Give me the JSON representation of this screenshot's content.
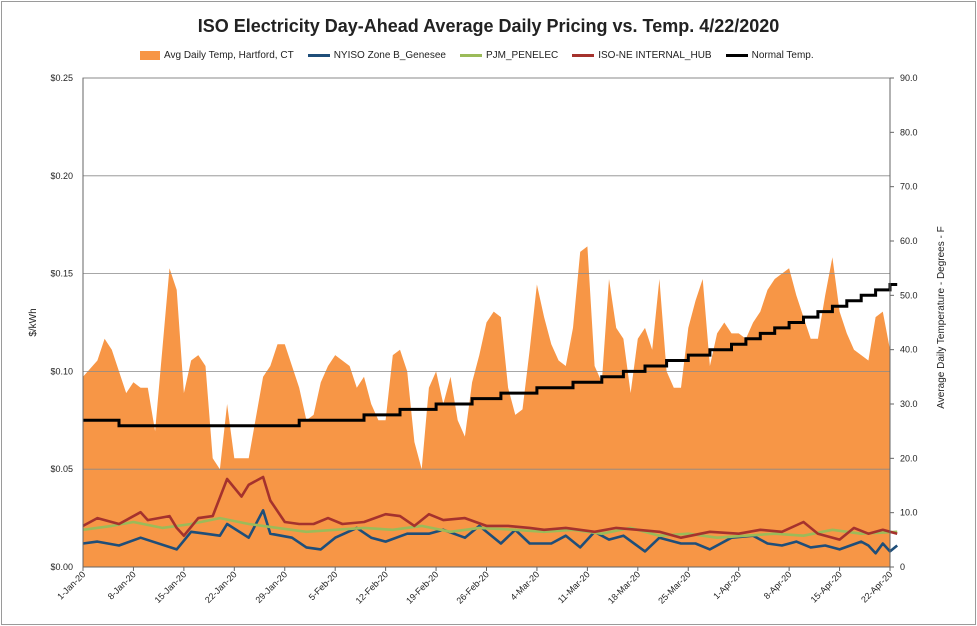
{
  "chart_data": {
    "type": "line",
    "title": "ISO Electricity Day-Ahead Average Daily Pricing vs. Temp. 4/22/2020",
    "ylabel": "$/kWh",
    "y2label": "Average Daily Temperature - Degrees - F",
    "ylim": [
      0,
      0.25
    ],
    "y2lim": [
      0,
      90
    ],
    "yticks": [
      "$0.00",
      "$0.05",
      "$0.10",
      "$0.15",
      "$0.20",
      "$0.25"
    ],
    "y2ticks": [
      "0",
      "10.0",
      "20.0",
      "30.0",
      "40.0",
      "50.0",
      "60.0",
      "70.0",
      "80.0",
      "90.0"
    ],
    "x_start": "2020-01-01",
    "x_end": "2020-04-22",
    "xticks": [
      "1-Jan-20",
      "8-Jan-20",
      "15-Jan-20",
      "22-Jan-20",
      "29-Jan-20",
      "5-Feb-20",
      "12-Feb-20",
      "19-Feb-20",
      "26-Feb-20",
      "4-Mar-20",
      "11-Mar-20",
      "18-Mar-20",
      "25-Mar-20",
      "1-Apr-20",
      "8-Apr-20",
      "15-Apr-20",
      "22-Apr-20"
    ],
    "grid": true,
    "legend_position": "top",
    "series": [
      {
        "name": "Avg Daily Temp, Hartford, CT",
        "axis": "right",
        "kind": "area",
        "color": "#f79646",
        "keys": [
          [
            "2020-01-01",
            35
          ],
          [
            "2020-01-03",
            38
          ],
          [
            "2020-01-04",
            42
          ],
          [
            "2020-01-05",
            40
          ],
          [
            "2020-01-07",
            32
          ],
          [
            "2020-01-08",
            34
          ],
          [
            "2020-01-09",
            33
          ],
          [
            "2020-01-10",
            33
          ],
          [
            "2020-01-11",
            25
          ],
          [
            "2020-01-12",
            40
          ],
          [
            "2020-01-13",
            55
          ],
          [
            "2020-01-14",
            51
          ],
          [
            "2020-01-15",
            32
          ],
          [
            "2020-01-16",
            38
          ],
          [
            "2020-01-17",
            39
          ],
          [
            "2020-01-18",
            37
          ],
          [
            "2020-01-19",
            20
          ],
          [
            "2020-01-20",
            18
          ],
          [
            "2020-01-21",
            30
          ],
          [
            "2020-01-22",
            20
          ],
          [
            "2020-01-23",
            20
          ],
          [
            "2020-01-24",
            20
          ],
          [
            "2020-01-26",
            35
          ],
          [
            "2020-01-27",
            37
          ],
          [
            "2020-01-28",
            41
          ],
          [
            "2020-01-29",
            41
          ],
          [
            "2020-01-30",
            37
          ],
          [
            "2020-01-31",
            33
          ],
          [
            "2020-02-01",
            27
          ],
          [
            "2020-02-02",
            28
          ],
          [
            "2020-02-03",
            34
          ],
          [
            "2020-02-04",
            37
          ],
          [
            "2020-02-05",
            39
          ],
          [
            "2020-02-07",
            37
          ],
          [
            "2020-02-08",
            33
          ],
          [
            "2020-02-09",
            35
          ],
          [
            "2020-02-10",
            30
          ],
          [
            "2020-02-11",
            27
          ],
          [
            "2020-02-12",
            27
          ],
          [
            "2020-02-13",
            39
          ],
          [
            "2020-02-14",
            40
          ],
          [
            "2020-02-15",
            36
          ],
          [
            "2020-02-16",
            23
          ],
          [
            "2020-02-17",
            18
          ],
          [
            "2020-02-18",
            33
          ],
          [
            "2020-02-19",
            36
          ],
          [
            "2020-02-20",
            30
          ],
          [
            "2020-02-21",
            35
          ],
          [
            "2020-02-22",
            27
          ],
          [
            "2020-02-23",
            24
          ],
          [
            "2020-02-24",
            34
          ],
          [
            "2020-02-25",
            39
          ],
          [
            "2020-02-26",
            45
          ],
          [
            "2020-02-27",
            47
          ],
          [
            "2020-02-28",
            46
          ],
          [
            "2020-02-29",
            33
          ],
          [
            "2020-03-01",
            28
          ],
          [
            "2020-03-02",
            29
          ],
          [
            "2020-03-03",
            40
          ],
          [
            "2020-03-04",
            52
          ],
          [
            "2020-03-05",
            46
          ],
          [
            "2020-03-06",
            41
          ],
          [
            "2020-03-07",
            38
          ],
          [
            "2020-03-08",
            37
          ],
          [
            "2020-03-09",
            44
          ],
          [
            "2020-03-10",
            58
          ],
          [
            "2020-03-11",
            59
          ],
          [
            "2020-03-12",
            37
          ],
          [
            "2020-03-13",
            34
          ],
          [
            "2020-03-14",
            53
          ],
          [
            "2020-03-15",
            44
          ],
          [
            "2020-03-16",
            42
          ],
          [
            "2020-03-17",
            32
          ],
          [
            "2020-03-18",
            42
          ],
          [
            "2020-03-19",
            44
          ],
          [
            "2020-03-20",
            40
          ],
          [
            "2020-03-21",
            53
          ],
          [
            "2020-03-22",
            36
          ],
          [
            "2020-03-23",
            33
          ],
          [
            "2020-03-24",
            33
          ],
          [
            "2020-03-25",
            44
          ],
          [
            "2020-03-26",
            49
          ],
          [
            "2020-03-27",
            53
          ],
          [
            "2020-03-28",
            37
          ],
          [
            "2020-03-29",
            43
          ],
          [
            "2020-03-30",
            45
          ],
          [
            "2020-03-31",
            43
          ],
          [
            "2020-04-01",
            43
          ],
          [
            "2020-04-02",
            42
          ],
          [
            "2020-04-03",
            45
          ],
          [
            "2020-04-04",
            47
          ],
          [
            "2020-04-05",
            51
          ],
          [
            "2020-04-06",
            53
          ],
          [
            "2020-04-07",
            54
          ],
          [
            "2020-04-08",
            55
          ],
          [
            "2020-04-09",
            50
          ],
          [
            "2020-04-10",
            46
          ],
          [
            "2020-04-11",
            42
          ],
          [
            "2020-04-12",
            42
          ],
          [
            "2020-04-13",
            50
          ],
          [
            "2020-04-14",
            57
          ],
          [
            "2020-04-15",
            47
          ],
          [
            "2020-04-16",
            43
          ],
          [
            "2020-04-17",
            40
          ],
          [
            "2020-04-18",
            39
          ],
          [
            "2020-04-19",
            38
          ],
          [
            "2020-04-20",
            46
          ],
          [
            "2020-04-21",
            47
          ],
          [
            "2020-04-22",
            40
          ]
        ]
      },
      {
        "name": "NYISO Zone B_Genesee",
        "axis": "left",
        "kind": "line",
        "color": "#1f4e79",
        "keys": [
          [
            "2020-01-01",
            0.012
          ],
          [
            "2020-01-03",
            0.013
          ],
          [
            "2020-01-06",
            0.011
          ],
          [
            "2020-01-09",
            0.015
          ],
          [
            "2020-01-14",
            0.009
          ],
          [
            "2020-01-16",
            0.018
          ],
          [
            "2020-01-18",
            0.017
          ],
          [
            "2020-01-20",
            0.016
          ],
          [
            "2020-01-21",
            0.022
          ],
          [
            "2020-01-24",
            0.015
          ],
          [
            "2020-01-26",
            0.029
          ],
          [
            "2020-01-27",
            0.017
          ],
          [
            "2020-01-30",
            0.015
          ],
          [
            "2020-02-01",
            0.01
          ],
          [
            "2020-02-03",
            0.009
          ],
          [
            "2020-02-05",
            0.015
          ],
          [
            "2020-02-08",
            0.02
          ],
          [
            "2020-02-10",
            0.015
          ],
          [
            "2020-02-12",
            0.013
          ],
          [
            "2020-02-15",
            0.017
          ],
          [
            "2020-02-18",
            0.017
          ],
          [
            "2020-02-20",
            0.019
          ],
          [
            "2020-02-23",
            0.015
          ],
          [
            "2020-02-25",
            0.021
          ],
          [
            "2020-02-28",
            0.012
          ],
          [
            "2020-03-01",
            0.019
          ],
          [
            "2020-03-03",
            0.012
          ],
          [
            "2020-03-06",
            0.012
          ],
          [
            "2020-03-08",
            0.016
          ],
          [
            "2020-03-10",
            0.01
          ],
          [
            "2020-03-12",
            0.018
          ],
          [
            "2020-03-14",
            0.014
          ],
          [
            "2020-03-16",
            0.016
          ],
          [
            "2020-03-19",
            0.008
          ],
          [
            "2020-03-21",
            0.015
          ],
          [
            "2020-03-24",
            0.012
          ],
          [
            "2020-03-26",
            0.012
          ],
          [
            "2020-03-28",
            0.009
          ],
          [
            "2020-03-31",
            0.015
          ],
          [
            "2020-04-03",
            0.016
          ],
          [
            "2020-04-05",
            0.012
          ],
          [
            "2020-04-07",
            0.011
          ],
          [
            "2020-04-09",
            0.013
          ],
          [
            "2020-04-11",
            0.01
          ],
          [
            "2020-04-13",
            0.011
          ],
          [
            "2020-04-15",
            0.009
          ],
          [
            "2020-04-18",
            0.013
          ],
          [
            "2020-04-19",
            0.011
          ],
          [
            "2020-04-20",
            0.007
          ],
          [
            "2020-04-21",
            0.012
          ],
          [
            "2020-04-22",
            0.008
          ],
          [
            "2020-04-23",
            0.011
          ]
        ]
      },
      {
        "name": "PJM_PENELEC",
        "axis": "left",
        "kind": "line",
        "color": "#9bbb59",
        "keys": [
          [
            "2020-01-01",
            0.019
          ],
          [
            "2020-01-05",
            0.021
          ],
          [
            "2020-01-08",
            0.023
          ],
          [
            "2020-01-12",
            0.02
          ],
          [
            "2020-01-16",
            0.022
          ],
          [
            "2020-01-20",
            0.025
          ],
          [
            "2020-01-24",
            0.022
          ],
          [
            "2020-01-28",
            0.02
          ],
          [
            "2020-02-01",
            0.018
          ],
          [
            "2020-02-05",
            0.019
          ],
          [
            "2020-02-09",
            0.02
          ],
          [
            "2020-02-13",
            0.019
          ],
          [
            "2020-02-17",
            0.021
          ],
          [
            "2020-02-21",
            0.018
          ],
          [
            "2020-02-25",
            0.02
          ],
          [
            "2020-03-01",
            0.019
          ],
          [
            "2020-03-05",
            0.018
          ],
          [
            "2020-03-09",
            0.019
          ],
          [
            "2020-03-13",
            0.017
          ],
          [
            "2020-03-17",
            0.02
          ],
          [
            "2020-03-21",
            0.016
          ],
          [
            "2020-03-25",
            0.017
          ],
          [
            "2020-03-29",
            0.015
          ],
          [
            "2020-04-02",
            0.016
          ],
          [
            "2020-04-06",
            0.017
          ],
          [
            "2020-04-10",
            0.016
          ],
          [
            "2020-04-14",
            0.019
          ],
          [
            "2020-04-18",
            0.017
          ],
          [
            "2020-04-23",
            0.018
          ]
        ]
      },
      {
        "name": "ISO-NE INTERNAL_HUB",
        "axis": "left",
        "kind": "line",
        "color": "#a5322d",
        "keys": [
          [
            "2020-01-01",
            0.021
          ],
          [
            "2020-01-03",
            0.025
          ],
          [
            "2020-01-06",
            0.022
          ],
          [
            "2020-01-09",
            0.028
          ],
          [
            "2020-01-10",
            0.024
          ],
          [
            "2020-01-13",
            0.026
          ],
          [
            "2020-01-14",
            0.02
          ],
          [
            "2020-01-15",
            0.016
          ],
          [
            "2020-01-17",
            0.025
          ],
          [
            "2020-01-19",
            0.026
          ],
          [
            "2020-01-21",
            0.045
          ],
          [
            "2020-01-23",
            0.036
          ],
          [
            "2020-01-24",
            0.042
          ],
          [
            "2020-01-26",
            0.046
          ],
          [
            "2020-01-27",
            0.034
          ],
          [
            "2020-01-29",
            0.023
          ],
          [
            "2020-01-31",
            0.022
          ],
          [
            "2020-02-02",
            0.022
          ],
          [
            "2020-02-04",
            0.025
          ],
          [
            "2020-02-06",
            0.022
          ],
          [
            "2020-02-09",
            0.023
          ],
          [
            "2020-02-12",
            0.027
          ],
          [
            "2020-02-14",
            0.026
          ],
          [
            "2020-02-16",
            0.021
          ],
          [
            "2020-02-18",
            0.027
          ],
          [
            "2020-02-20",
            0.024
          ],
          [
            "2020-02-23",
            0.025
          ],
          [
            "2020-02-26",
            0.021
          ],
          [
            "2020-02-29",
            0.021
          ],
          [
            "2020-03-03",
            0.02
          ],
          [
            "2020-03-05",
            0.019
          ],
          [
            "2020-03-08",
            0.02
          ],
          [
            "2020-03-12",
            0.018
          ],
          [
            "2020-03-15",
            0.02
          ],
          [
            "2020-03-18",
            0.019
          ],
          [
            "2020-03-21",
            0.018
          ],
          [
            "2020-03-24",
            0.015
          ],
          [
            "2020-03-28",
            0.018
          ],
          [
            "2020-04-01",
            0.017
          ],
          [
            "2020-04-04",
            0.019
          ],
          [
            "2020-04-07",
            0.018
          ],
          [
            "2020-04-10",
            0.023
          ],
          [
            "2020-04-12",
            0.017
          ],
          [
            "2020-04-15",
            0.014
          ],
          [
            "2020-04-17",
            0.02
          ],
          [
            "2020-04-19",
            0.017
          ],
          [
            "2020-04-21",
            0.019
          ],
          [
            "2020-04-23",
            0.017
          ]
        ]
      },
      {
        "name": "Normal Temp.",
        "axis": "right",
        "kind": "step",
        "color": "#000000",
        "keys": [
          [
            "2020-01-01",
            27
          ],
          [
            "2020-01-06",
            26
          ],
          [
            "2020-01-26",
            26
          ],
          [
            "2020-01-31",
            27
          ],
          [
            "2020-02-09",
            28
          ],
          [
            "2020-02-14",
            29
          ],
          [
            "2020-02-19",
            30
          ],
          [
            "2020-02-24",
            31
          ],
          [
            "2020-02-28",
            32
          ],
          [
            "2020-03-04",
            33
          ],
          [
            "2020-03-09",
            34
          ],
          [
            "2020-03-13",
            35
          ],
          [
            "2020-03-16",
            36
          ],
          [
            "2020-03-19",
            37
          ],
          [
            "2020-03-22",
            38
          ],
          [
            "2020-03-25",
            39
          ],
          [
            "2020-03-28",
            40
          ],
          [
            "2020-03-31",
            41
          ],
          [
            "2020-04-02",
            42
          ],
          [
            "2020-04-04",
            43
          ],
          [
            "2020-04-06",
            44
          ],
          [
            "2020-04-08",
            45
          ],
          [
            "2020-04-10",
            46
          ],
          [
            "2020-04-12",
            47
          ],
          [
            "2020-04-14",
            48
          ],
          [
            "2020-04-16",
            49
          ],
          [
            "2020-04-18",
            50
          ],
          [
            "2020-04-20",
            51
          ],
          [
            "2020-04-22",
            52
          ],
          [
            "2020-04-23",
            52
          ]
        ]
      }
    ]
  }
}
